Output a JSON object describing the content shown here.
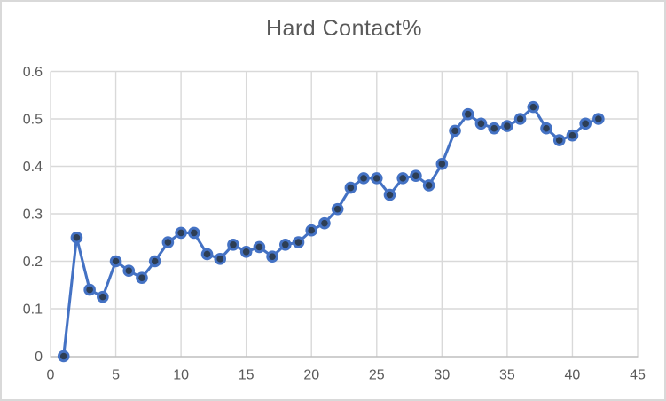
{
  "title": "Hard Contact%",
  "colors": {
    "line": "#4472C4",
    "marker_fill": "#2d3e55",
    "marker_stroke": "#4472C4",
    "gridline": "#d9d9d9",
    "axis_line": "#bfbfbf",
    "text": "#595959",
    "background": "#ffffff",
    "border": "#d9d9d9"
  },
  "chart_data": {
    "type": "line",
    "title": "Hard Contact%",
    "series": [
      {
        "name": "Hard Contact%",
        "x": [
          1,
          2,
          3,
          4,
          5,
          6,
          7,
          8,
          9,
          10,
          11,
          12,
          13,
          14,
          15,
          16,
          17,
          18,
          19,
          20,
          21,
          22,
          23,
          24,
          25,
          26,
          27,
          28,
          29,
          30,
          31,
          32,
          33,
          34,
          35,
          36,
          37,
          38,
          39,
          40,
          41,
          42
        ],
        "values": [
          0,
          0.25,
          0.14,
          0.125,
          0.2,
          0.18,
          0.165,
          0.2,
          0.24,
          0.26,
          0.26,
          0.215,
          0.205,
          0.235,
          0.22,
          0.23,
          0.21,
          0.235,
          0.24,
          0.265,
          0.28,
          0.31,
          0.355,
          0.375,
          0.375,
          0.34,
          0.375,
          0.38,
          0.36,
          0.405,
          0.475,
          0.51,
          0.49,
          0.48,
          0.485,
          0.5,
          0.525,
          0.48,
          0.455,
          0.465,
          0.49,
          0.5
        ]
      }
    ],
    "xlabel": "",
    "ylabel": "",
    "xlim": [
      0,
      45
    ],
    "ylim": [
      0,
      0.6
    ],
    "x_ticks": [
      0,
      5,
      10,
      15,
      20,
      25,
      30,
      35,
      40,
      45
    ],
    "x_tick_labels": [
      "0",
      "5",
      "10",
      "15",
      "20",
      "25",
      "30",
      "35",
      "40",
      "45"
    ],
    "y_ticks": [
      0,
      0.1,
      0.2,
      0.3,
      0.4,
      0.5,
      0.6
    ],
    "y_tick_labels": [
      "0",
      "0.1",
      "0.2",
      "0.3",
      "0.4",
      "0.5",
      "0.6"
    ],
    "grid": true,
    "legend": false,
    "marker": "circle"
  }
}
